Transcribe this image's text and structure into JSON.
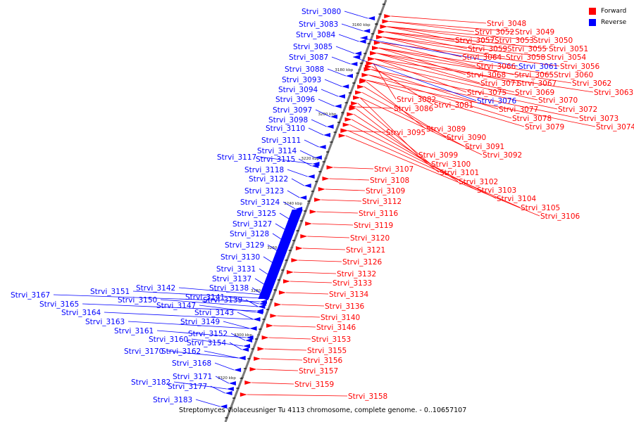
{
  "legend": {
    "forward_label": "Forward",
    "reverse_label": "Reverse",
    "forward_color": "#ff0000",
    "reverse_color": "#0000ff"
  },
  "caption": "Streptomyces violaceusniger Tu 4113 chromosome, complete genome. - 0..10657107",
  "axis_ticks": [
    "3160 kbp",
    "3180 kbp",
    "3200 kbp",
    "3220 kbp",
    "3240 kbp",
    "3260 kbp",
    "3280 kbp",
    "3300 kbp",
    "3320 kbp"
  ],
  "forward_genes": [
    "Strvi_3048",
    "Strvi_3049",
    "Strvi_3050",
    "Strvi_3051",
    "Strvi_3052",
    "Strvi_3053",
    "Strvi_3054",
    "Strvi_3055",
    "Strvi_3056",
    "Strvi_3057",
    "Strvi_3058",
    "Strvi_3059",
    "Strvi_3060",
    "Strvi_3062",
    "Strvi_3063",
    "Strvi_3064",
    "Strvi_3065",
    "Strvi_3066",
    "Strvi_3067",
    "Strvi_3068",
    "Strvi_3069",
    "Strvi_3070",
    "Strvi_3071",
    "Strvi_3072",
    "Strvi_3073",
    "Strvi_3074",
    "Strvi_3075",
    "Strvi_3077",
    "Strvi_3078",
    "Strvi_3079",
    "Strvi_3081",
    "Strvi_3082",
    "Strvi_3086",
    "Strvi_3089",
    "Strvi_3090",
    "Strvi_3091",
    "Strvi_3092",
    "Strvi_3095",
    "Strvi_3099",
    "Strvi_3100",
    "Strvi_3101",
    "Strvi_3102",
    "Strvi_3103",
    "Strvi_3104",
    "Strvi_3105",
    "Strvi_3106",
    "Strvi_3107",
    "Strvi_3108",
    "Strvi_3109",
    "Strvi_3112",
    "Strvi_3116",
    "Strvi_3119",
    "Strvi_3120",
    "Strvi_3121",
    "Strvi_3126",
    "Strvi_3132",
    "Strvi_3133",
    "Strvi_3134",
    "Strvi_3136",
    "Strvi_3140",
    "Strvi_3146",
    "Strvi_3153",
    "Strvi_3155",
    "Strvi_3156",
    "Strvi_3157",
    "Strvi_3158",
    "Strvi_3159"
  ],
  "reverse_genes": [
    "Strvi_3061",
    "Strvi_3076",
    "Strvi_3080",
    "Strvi_3083",
    "Strvi_3084",
    "Strvi_3085",
    "Strvi_3087",
    "Strvi_3088",
    "Strvi_3093",
    "Strvi_3094",
    "Strvi_3096",
    "Strvi_3097",
    "Strvi_3098",
    "Strvi_3110",
    "Strvi_3111",
    "Strvi_3114",
    "Strvi_3115",
    "Strvi_3117",
    "Strvi_3118",
    "Strvi_3122",
    "Strvi_3123",
    "Strvi_3124",
    "Strvi_3125",
    "Strvi_3127",
    "Strvi_3128",
    "Strvi_3129",
    "Strvi_3130",
    "Strvi_3131",
    "Strvi_3137",
    "Strvi_3138",
    "Strvi_3139",
    "Strvi_3141",
    "Strvi_3142",
    "Strvi_3143",
    "Strvi_3147",
    "Strvi_3149",
    "Strvi_3150",
    "Strvi_3151",
    "Strvi_3152",
    "Strvi_3154",
    "Strvi_3160",
    "Strvi_3161",
    "Strvi_3162",
    "Strvi_3163",
    "Strvi_3164",
    "Strvi_3165",
    "Strvi_3167",
    "Strvi_3168",
    "Strvi_3170",
    "Strvi_3171",
    "Strvi_3177",
    "Strvi_3182",
    "Strvi_3183"
  ]
}
